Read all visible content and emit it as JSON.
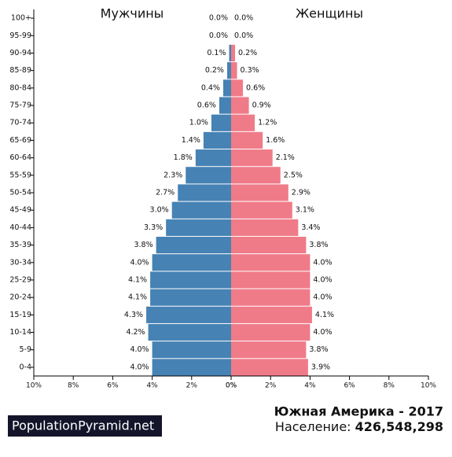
{
  "chart_data": {
    "type": "pyramid",
    "categories": [
      "100+",
      "95-99",
      "90-94",
      "85-89",
      "80-84",
      "75-79",
      "70-74",
      "65-69",
      "60-64",
      "55-59",
      "50-54",
      "45-49",
      "40-44",
      "35-39",
      "30-34",
      "25-29",
      "20-24",
      "15-19",
      "10-14",
      "5-9",
      "0-4"
    ],
    "series": [
      {
        "name": "Мужчины",
        "color": "#4682b4",
        "side": "left",
        "values": [
          0.0,
          0.0,
          0.1,
          0.2,
          0.4,
          0.6,
          1.0,
          1.4,
          1.8,
          2.3,
          2.7,
          3.0,
          3.3,
          3.8,
          4.0,
          4.1,
          4.1,
          4.3,
          4.2,
          4.0,
          4.0
        ],
        "value_labels": [
          "0.0%",
          "0.0%",
          "0.1%",
          "0.2%",
          "0.4%",
          "0.6%",
          "1.0%",
          "1.4%",
          "1.8%",
          "2.3%",
          "2.7%",
          "3.0%",
          "3.3%",
          "3.8%",
          "4.0%",
          "4.1%",
          "4.1%",
          "4.3%",
          "4.2%",
          "4.0%",
          "4.0%"
        ]
      },
      {
        "name": "Женщины",
        "color": "#f07b88",
        "side": "right",
        "values": [
          0.0,
          0.0,
          0.2,
          0.3,
          0.6,
          0.9,
          1.2,
          1.6,
          2.1,
          2.5,
          2.9,
          3.1,
          3.4,
          3.8,
          4.0,
          4.0,
          4.0,
          4.1,
          4.0,
          3.8,
          3.9
        ],
        "value_labels": [
          "0.0%",
          "0.0%",
          "0.2%",
          "0.3%",
          "0.6%",
          "0.9%",
          "1.2%",
          "1.6%",
          "2.1%",
          "2.5%",
          "2.9%",
          "3.1%",
          "3.4%",
          "3.8%",
          "4.0%",
          "4.0%",
          "4.0%",
          "4.1%",
          "4.0%",
          "3.8%",
          "3.9%"
        ]
      }
    ],
    "xlim": [
      0,
      10
    ],
    "xticks": [
      {
        "value": 0,
        "label": "0%"
      },
      {
        "value": 2,
        "label": "2%"
      },
      {
        "value": 4,
        "label": "4%"
      },
      {
        "value": 6,
        "label": "6%"
      },
      {
        "value": 8,
        "label": "8%"
      },
      {
        "value": 10,
        "label": "10%"
      }
    ],
    "title": "Южная Америка - 2017",
    "population_label": "Население:",
    "population": "426,548,298",
    "brand": "PopulationPyramid.net"
  }
}
